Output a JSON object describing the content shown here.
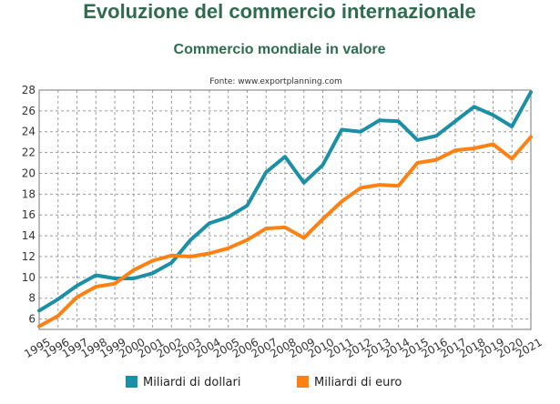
{
  "chart_data": {
    "type": "line",
    "title": "Evoluzione del commercio internazionale",
    "subtitle": "Commercio mondiale in valore",
    "source": "Fonte: www.exportplanning.com",
    "xlabel": "",
    "ylabel": "",
    "x": [
      "1995",
      "1996",
      "1997",
      "1998",
      "1999",
      "2000",
      "2001",
      "2002",
      "2003",
      "2004",
      "2005",
      "2006",
      "2007",
      "2008",
      "2009",
      "2010",
      "2011",
      "2012",
      "2013",
      "2014",
      "2015",
      "2016",
      "2017",
      "2018",
      "2019",
      "2020",
      "2021"
    ],
    "ylim": [
      5,
      28
    ],
    "yticks": [
      6,
      8,
      10,
      12,
      14,
      16,
      18,
      20,
      22,
      24,
      26,
      28
    ],
    "grid": true,
    "legend_position": "bottom",
    "series": [
      {
        "name": "Miliardi di dollari",
        "color": "#1a8fa6",
        "values": [
          6.8,
          7.9,
          9.2,
          10.2,
          9.9,
          9.9,
          10.4,
          11.4,
          13.6,
          15.2,
          15.8,
          16.9,
          20.1,
          21.6,
          19.1,
          20.8,
          24.2,
          24.0,
          25.1,
          25.0,
          23.2,
          23.6,
          25.0,
          26.4,
          25.6,
          24.5,
          27.8
        ]
      },
      {
        "name": "Miliardi di euro",
        "color": "#ff8112",
        "values": [
          5.3,
          6.3,
          8.1,
          9.1,
          9.4,
          10.7,
          11.6,
          12.1,
          12.0,
          12.3,
          12.8,
          13.6,
          14.7,
          14.8,
          13.8,
          15.6,
          17.3,
          18.6,
          18.9,
          18.8,
          21.0,
          21.3,
          22.2,
          22.4,
          22.8,
          21.4,
          23.5
        ]
      }
    ]
  }
}
